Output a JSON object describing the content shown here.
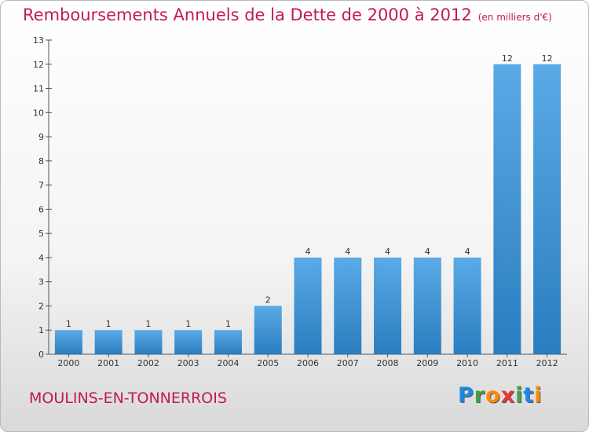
{
  "chart_data": {
    "type": "bar",
    "title": "Remboursements Annuels de la Dette de 2000 à 2012",
    "subtitle": "(en milliers d'€)",
    "categories": [
      "2000",
      "2001",
      "2002",
      "2003",
      "2004",
      "2005",
      "2006",
      "2007",
      "2008",
      "2009",
      "2010",
      "2011",
      "2012"
    ],
    "values": [
      1,
      1,
      1,
      1,
      1,
      2,
      4,
      4,
      4,
      4,
      4,
      12,
      12
    ],
    "data_labels": [
      "1",
      "1",
      "1",
      "1",
      "1",
      "2",
      "4",
      "4",
      "4",
      "4",
      "4",
      "12",
      "12"
    ],
    "ylim": [
      0,
      13
    ],
    "yticks": [
      0,
      1,
      2,
      3,
      4,
      5,
      6,
      7,
      8,
      9,
      10,
      11,
      12,
      13
    ],
    "xlabel": "",
    "ylabel": "",
    "grid": false,
    "bar_color_top": "#5aaae6",
    "bar_color_bottom": "#2a7dbf"
  },
  "commune": "MOULINS-EN-TONNERROIS",
  "logo": {
    "letters": [
      {
        "char": "P",
        "color": "#1e88e5"
      },
      {
        "char": "r",
        "color": "#43a047"
      },
      {
        "char": "o",
        "color": "#fb8c00"
      },
      {
        "char": "x",
        "color": "#e53935"
      },
      {
        "char": "i",
        "color": "#43a047"
      },
      {
        "char": "t",
        "color": "#1e88e5"
      },
      {
        "char": "i",
        "color": "#fb8c00"
      }
    ]
  }
}
